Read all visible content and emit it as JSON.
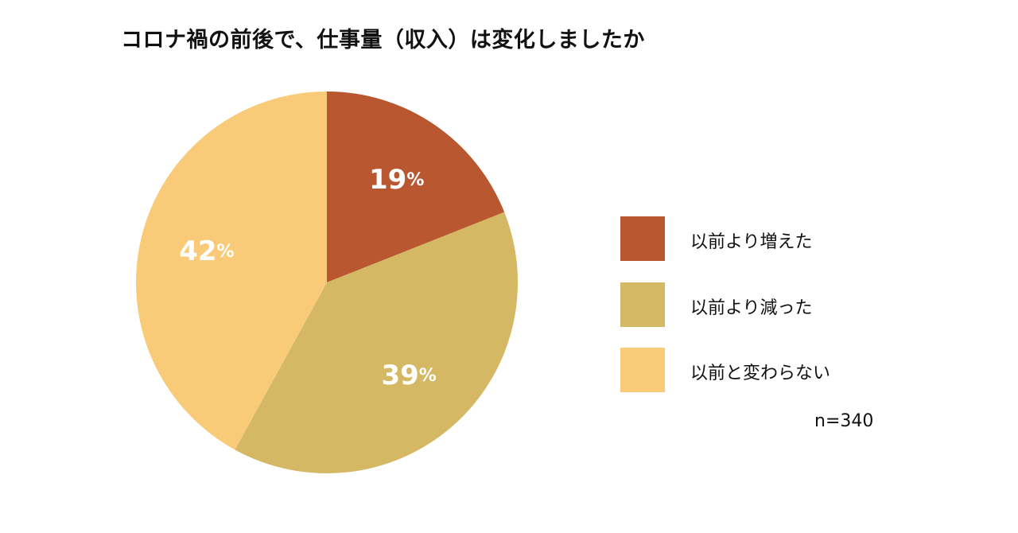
{
  "chart_data": {
    "type": "pie",
    "title": "コロナ禍の前後で、仕事量（収入）は変化しましたか",
    "categories": [
      "以前より増えた",
      "以前より減った",
      "以前と変わらない"
    ],
    "values": [
      19,
      39,
      42
    ],
    "labels": [
      "19%",
      "39%",
      "42%"
    ],
    "colors": [
      "#b85730",
      "#d4b864",
      "#f9cb79"
    ],
    "label_color": "#ffffff",
    "legend": "right",
    "start": "top",
    "direction": "clockwise",
    "note": "n=340"
  }
}
